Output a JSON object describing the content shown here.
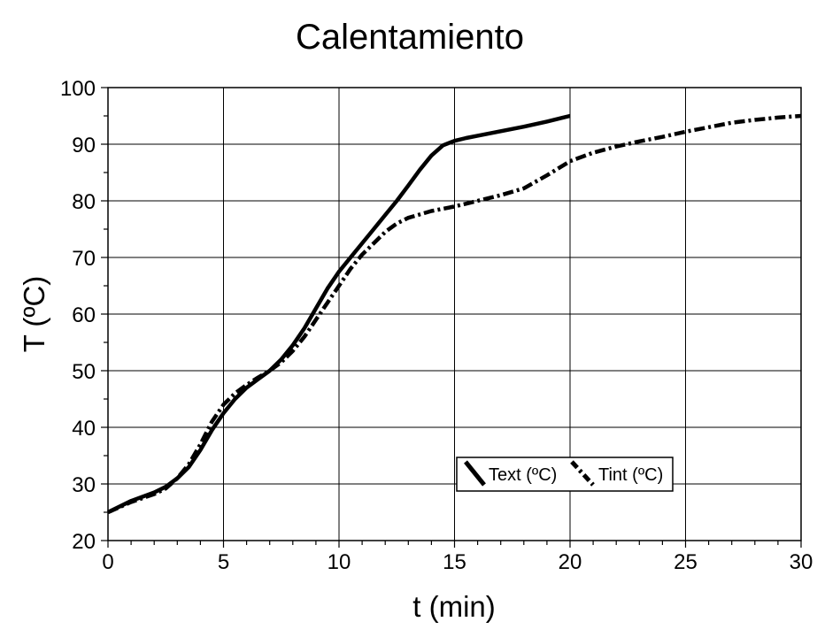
{
  "chart_data": {
    "type": "line",
    "title": "Calentamiento",
    "xlabel": "t (min)",
    "ylabel": "T (ºC)",
    "xlim": [
      0,
      30
    ],
    "ylim": [
      20,
      100
    ],
    "xticks": [
      0,
      5,
      10,
      15,
      20,
      25,
      30
    ],
    "yticks": [
      20,
      30,
      40,
      50,
      60,
      70,
      80,
      90,
      100
    ],
    "grid": true,
    "legend_position": "lower-right",
    "series": [
      {
        "name": "Text (ºC)",
        "style": "solid",
        "color": "#000000",
        "x": [
          0,
          1,
          2,
          2.5,
          3,
          3.5,
          4,
          4.5,
          5,
          5.5,
          6,
          6.5,
          7,
          7.5,
          8,
          8.5,
          9,
          9.5,
          10,
          10.5,
          11,
          11.5,
          12,
          12.5,
          13,
          13.5,
          14,
          14.5,
          15,
          15.5,
          16,
          17,
          18,
          19,
          20
        ],
        "y": [
          25,
          27,
          28.5,
          29.5,
          31,
          33,
          36,
          39.5,
          42.5,
          45,
          47,
          48.5,
          50,
          52,
          54.5,
          57.5,
          61,
          64.5,
          67.5,
          70,
          72.5,
          75,
          77.5,
          80,
          82.7,
          85.5,
          88,
          89.8,
          90.6,
          91.1,
          91.5,
          92.3,
          93.1,
          94,
          95
        ]
      },
      {
        "name": "Tint (ºC)",
        "style": "dash-dot",
        "color": "#000000",
        "x": [
          0,
          1,
          2,
          2.5,
          3,
          3.5,
          4,
          4.5,
          5,
          5.5,
          6,
          6.5,
          7,
          7.5,
          8,
          8.5,
          9,
          9.5,
          10,
          10.5,
          11,
          11.5,
          12,
          12.5,
          13,
          14,
          15,
          16,
          17,
          18,
          19,
          20,
          21,
          22,
          23,
          24,
          25,
          26,
          27,
          28,
          29,
          30
        ],
        "y": [
          25,
          26.8,
          28.2,
          29.2,
          31,
          33.5,
          37,
          41,
          44,
          46,
          47.5,
          48.8,
          50,
          51.5,
          53.5,
          56,
          59,
          62,
          65,
          68,
          70.5,
          72.5,
          74.5,
          76,
          77,
          78.2,
          79,
          80,
          81,
          82.2,
          84.5,
          87,
          88.5,
          89.6,
          90.5,
          91.3,
          92.2,
          93,
          93.8,
          94.3,
          94.7,
          95
        ]
      }
    ]
  }
}
